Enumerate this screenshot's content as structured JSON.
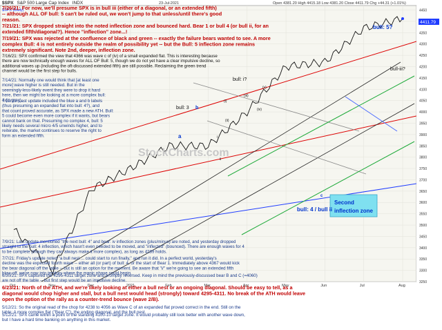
{
  "header": {
    "symbol": "$SPX",
    "name": "S&P 500 Large Cap Index",
    "exchange": "INDX",
    "date": "23-Jul-2021",
    "ohlc": "Open 4381.20  High 4415.18  Low 4381.20  Close 4411.79  Chg +44.31 (+1.01%)"
  },
  "legend": {
    "label": "$SPX (Daily)",
    "value": "4411.79"
  },
  "notes": [
    {
      "date": "7/26/21:",
      "text": "For now, we'll presume SPX is in bull iii (either of a diagonal, or an extended fifth) -- although ALL OF bull: 5 can't be ruled out, we won't jump to that unless/until there's good reason.",
      "color": "#c00000"
    },
    {
      "date": "7/21/21:",
      "text": "SPX dropped straight into the noted inflection zone and bounced hard. Bear 1 or bull 4 (or bull ii, for an extended fifth/diagonal?). Hence \"inflection\" zone...!",
      "color": "#c00000"
    },
    {
      "date": "7/19/21:",
      "text": "SPX was rejected at the confluence of black and green -- exactly the failure bears wanted to see. A more complex Bull: 4 is not entirely outside the realm of possibility yet -- but the Bull: 5 inflection zone remains extremely significant. Note 2nd, deeper, inflection zone.",
      "color": "#c00000"
    },
    {
      "date": "7/16/21:",
      "text": "SPX confirmed the view that 4366 was wave c of (iv) of a small expanded flat. This is interesting because there are now technically enough waves for ALL OF Bull: 5, though we do not yet have a clear impulsive decline, so additional waves up (including the oft-discussed extended fifth) are still possible. Reclaiming the green trend channel would be the first step for bulls.",
      "color": "#111111"
    },
    {
      "date": "7/14/21:",
      "text": "Normally one would think that [at least one more] wave higher is still needed. But in the seemingly-less-likely event they were to drop it hard here, then we might be looking at a more complex bull: 4 (in gray).",
      "color": "#1a3a8a"
    },
    {
      "date": "7/12/21:",
      "text": "Last update included the blue a and b labels (thus presuming an expanded flat into bull: 4?), and that count proved accurate, as SPX made a new ATH. Bull: 5 could become even more complex if it wants, but bears cannot bank on that. Presuming no complex 4, bull: 5 likely needs several micro 4/5 unwinds higher, and to reiterate, the market continues to reserve the right to form an extended fifth.",
      "color": "#1a3a8a"
    },
    {
      "date": "7/9/21:",
      "text": "Last update mentioned \"the next bull: 4\" and bear: iv inflection zones (plus/minus) are noted, and yesterday dropped straight to the bull: 4 inflection, which hasn't even needed to be moved, and \"inflected\" (bounced). There are enough waves for 4 to be complete (though they can always make it more complex), as long as 4289 holds.",
      "color": "#1a3a8a"
    },
    {
      "date": "7/7/21:",
      "text": "Friday's update noted \"a bull nest ... could start to run finally,\" and run it did. In a perfect world, yesterday's decline was the expected fourth wave -- either all (or part) of bull: 4, or the start of Bear 1. Immediately above 4367 would kick the bear diagonal off the table -- but is still an option for the moment. Be aware that \"i/\" we're going to see an extended fifth blow-off, we're now into territory where the manic phase could begin.",
      "color": "#1a3a8a"
    },
    {
      "date": "6/30/21:",
      "text": "SPX captured the 4295-4311 target zone and promptly reversed. Keep in mind the previously-discussed bear B and C (=4060) are not off the table -- but first step would be an impulsive decline.",
      "color": "#1a3a8a"
    },
    {
      "date": "6/23/21:",
      "text": "North of the ATH, and we're likely looking at either a bull nest or an ongoing diagonal. Should be easy to tell, as a diagonal would chop higher and stall, but a bull nest would head (strongly) toward 4295-4311. No break of the ATH would leave open the option of the rally as a counter-trend bounce (wave 2/B).",
      "color": "#c00000"
    },
    {
      "date": "5/12/21:",
      "text": "So the original read of the chop for 4238 to 4056 as Wave C of an expanded flat proved correct in the end. Still on the table: A more complex flat (\"Bear C\"), the ending diagonal, and the bull nest.",
      "color": "#1a3a8a"
    },
    {
      "date": "5/12/21:",
      "text": "SPX came within a point of the standing 4100-10 target zone. It would probably still look better with another wave down, but I have a hard time banking on anything in this market.",
      "color": "#1a3a8a"
    }
  ],
  "wave_labels": [
    "bull: 5?",
    "bull-iii?",
    "bull: i?",
    "bull: 3",
    "b",
    "(iv)",
    "(iii)",
    "(v)",
    "(i)",
    "(ii)",
    "i",
    "ii",
    "a",
    "c",
    "bull: 4 / bull ii"
  ],
  "zone": {
    "line1": "Second",
    "line2": "inflection zone"
  },
  "watermark": "StockCharts.com",
  "months": [
    "Oct",
    "Nov",
    "Dec",
    "2021",
    "Feb",
    "Mar",
    "Apr",
    "May",
    "Jun",
    "Jul",
    "Aug"
  ],
  "price_ticks": [
    "4450",
    "4400",
    "4350",
    "4300",
    "4250",
    "4200",
    "4150",
    "4100",
    "4050",
    "4000",
    "3950",
    "3900",
    "3850",
    "3800",
    "3750",
    "3700",
    "3650",
    "3600",
    "3550",
    "3500",
    "3450",
    "3400",
    "3350",
    "3300",
    "3250"
  ],
  "chart_data": {
    "type": "line",
    "title": "$SPX S&P 500 Large Cap Index INDX",
    "x": [
      "Oct",
      "Nov",
      "Dec",
      "2021",
      "Feb",
      "Mar",
      "Apr",
      "May",
      "Jun",
      "Jul",
      "Aug"
    ],
    "series": [
      {
        "name": "$SPX (Daily)",
        "values": [
          3480,
          3300,
          3660,
          3750,
          3850,
          3850,
          4000,
          4200,
          4220,
          4370,
          4412
        ]
      }
    ],
    "last_value": 4411.79,
    "ylim": [
      3250,
      4470
    ]
  }
}
